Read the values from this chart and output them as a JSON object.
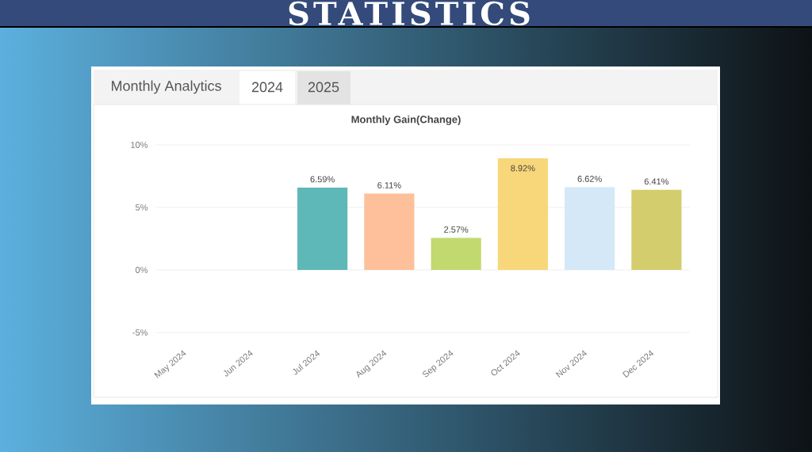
{
  "chart_data": {
    "type": "bar",
    "title": "Monthly Gain(Change)",
    "annotations": [
      "STATISTICS",
      "Monthly Analytics",
      "2024",
      "2025"
    ],
    "categories": [
      "May 2024",
      "Jun 2024",
      "Jul 2024",
      "Aug 2024",
      "Sep 2024",
      "Oct 2024",
      "Nov 2024",
      "Dec 2024"
    ],
    "values": [
      null,
      null,
      6.59,
      6.11,
      2.57,
      8.92,
      6.62,
      6.41
    ],
    "colors": [
      null,
      null,
      "#5fb8b8",
      "#fdc09a",
      "#c2d96f",
      "#f7d77a",
      "#d4e8f8",
      "#d3cd6e"
    ],
    "value_labels": [
      null,
      null,
      "6.59%",
      "6.11%",
      "2.57%",
      "8.92%",
      "6.62%",
      "6.41%"
    ],
    "ylim": [
      -5,
      10
    ],
    "yticks": [
      {
        "value": -5,
        "label": "-5%"
      },
      {
        "value": 0,
        "label": "0%"
      },
      {
        "value": 5,
        "label": "5%"
      },
      {
        "value": 10,
        "label": "10%"
      }
    ],
    "grid": "y"
  }
}
